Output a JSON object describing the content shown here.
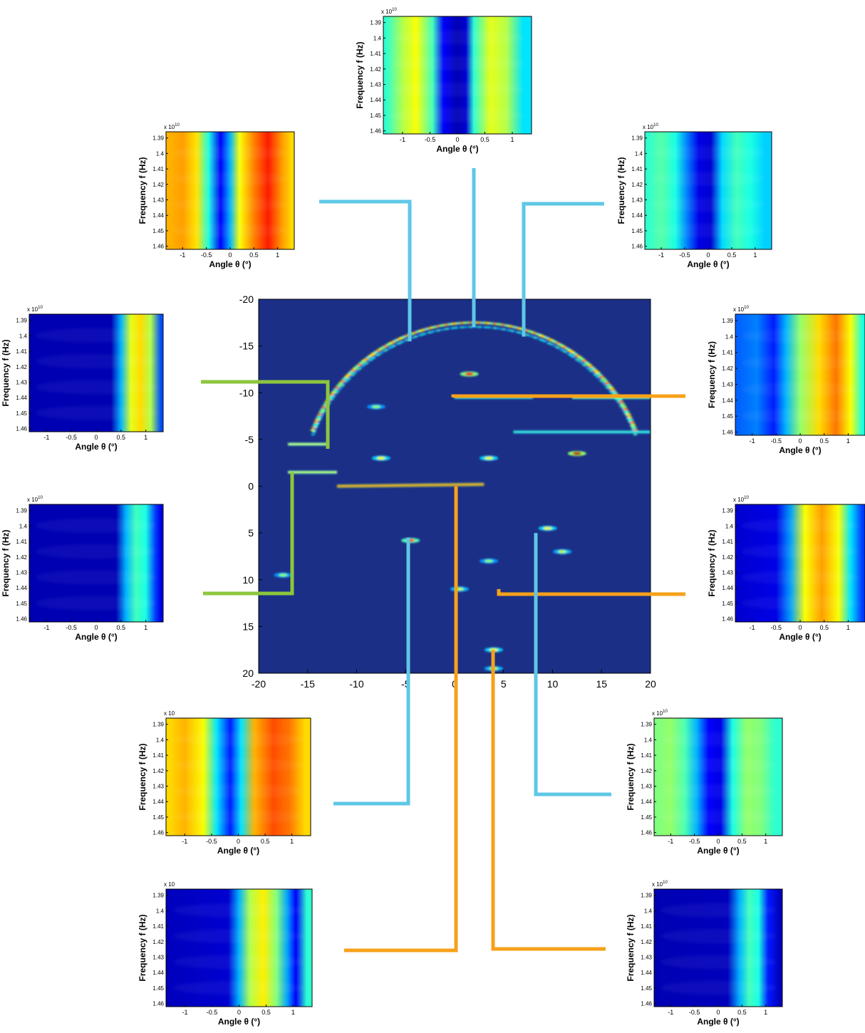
{
  "figure": {
    "connector_colors": {
      "blue": "#5ec7e6",
      "green": "#8cc63e",
      "orange": "#f7a11a"
    }
  },
  "chart_data": [
    {
      "id": "main-image",
      "type": "heatmap",
      "title": "",
      "xlabel": "",
      "ylabel": "",
      "xlim": [
        -20,
        20
      ],
      "ylim": [
        -20,
        20
      ],
      "y_direction": "down",
      "xticks": [
        "-20",
        "-15",
        "-10",
        "-5",
        "0",
        "5",
        "10",
        "15",
        "20"
      ],
      "yticks": [
        "-20",
        "-15",
        "-10",
        "-5",
        "0",
        "5",
        "10",
        "15",
        "20"
      ],
      "colormap": "jet",
      "background_color": "#1c2f86",
      "features": [
        {
          "kind": "arc",
          "center": [
            2,
            0
          ],
          "radius": 17.5,
          "from_angle_deg": 200,
          "to_angle_deg": 340,
          "intensity": 0.75
        },
        {
          "kind": "segment",
          "from": [
            -12,
            0
          ],
          "to": [
            3,
            -0.2
          ],
          "intensity": 0.8
        },
        {
          "kind": "segment",
          "from": [
            -17,
            -4.5
          ],
          "to": [
            -13,
            -4.5
          ],
          "intensity": 0.6
        },
        {
          "kind": "segment",
          "from": [
            -17,
            -1.5
          ],
          "to": [
            -12,
            -1.5
          ],
          "intensity": 0.6
        },
        {
          "kind": "segment",
          "from": [
            0,
            -9.5
          ],
          "to": [
            8,
            -9.5
          ],
          "intensity": 0.45
        },
        {
          "kind": "segment",
          "from": [
            12,
            -9.5
          ],
          "to": [
            20,
            -9.5
          ],
          "intensity": 0.55
        },
        {
          "kind": "segment",
          "from": [
            6,
            -5.8
          ],
          "to": [
            20,
            -5.8
          ],
          "intensity": 0.45
        },
        {
          "kind": "blob",
          "at": [
            12.5,
            -3.5
          ],
          "intensity": 0.95
        },
        {
          "kind": "blob",
          "at": [
            -4.5,
            5.8
          ],
          "intensity": 0.8
        },
        {
          "kind": "blob",
          "at": [
            1.5,
            -12
          ],
          "intensity": 0.9
        },
        {
          "kind": "blob",
          "at": [
            -7.5,
            -3
          ],
          "intensity": 0.6
        },
        {
          "kind": "blob",
          "at": [
            3.5,
            -3
          ],
          "intensity": 0.6
        },
        {
          "kind": "blob",
          "at": [
            9.5,
            4.5
          ],
          "intensity": 0.6
        },
        {
          "kind": "blob",
          "at": [
            11,
            7
          ],
          "intensity": 0.55
        },
        {
          "kind": "blob",
          "at": [
            4,
            17.5
          ],
          "intensity": 0.6
        },
        {
          "kind": "blob",
          "at": [
            4,
            19.5
          ],
          "intensity": 0.55
        },
        {
          "kind": "blob",
          "at": [
            0.5,
            11
          ],
          "intensity": 0.55
        },
        {
          "kind": "blob",
          "at": [
            3.5,
            8
          ],
          "intensity": 0.5
        },
        {
          "kind": "blob",
          "at": [
            -17.5,
            9.5
          ],
          "intensity": 0.5
        },
        {
          "kind": "blob",
          "at": [
            -8,
            -8.5
          ],
          "intensity": 0.5
        }
      ]
    },
    {
      "id": "panel-top",
      "type": "heatmap",
      "xlabel": "Angle θ (°)",
      "ylabel": "Frequency f (Hz)",
      "exponent_label": "x 10",
      "exponent_power": "10",
      "xlim": [
        -1.35,
        1.35
      ],
      "ylim": [
        1.386,
        1.462
      ],
      "xticks": [
        "-1",
        "-0.5",
        "0",
        "0.5",
        "1"
      ],
      "yticks": [
        "1.39",
        "1.4",
        "1.41",
        "1.42",
        "1.43",
        "1.44",
        "1.45",
        "1.46"
      ],
      "colormap": "jet",
      "connector": "blue",
      "connects_to": [
        2,
        -17
      ],
      "columns": [
        {
          "x": -1.3,
          "value": 0.42
        },
        {
          "x": -1.0,
          "value": 0.55
        },
        {
          "x": -0.75,
          "value": 0.62
        },
        {
          "x": -0.45,
          "value": 0.44
        },
        {
          "x": -0.25,
          "value": 0.12
        },
        {
          "x": 0.0,
          "value": 0.05
        },
        {
          "x": 0.15,
          "value": 0.08
        },
        {
          "x": 0.3,
          "value": 0.42
        },
        {
          "x": 0.6,
          "value": 0.6
        },
        {
          "x": 0.9,
          "value": 0.55
        },
        {
          "x": 1.2,
          "value": 0.35
        }
      ]
    },
    {
      "id": "panel-upper-left",
      "type": "heatmap",
      "xlabel": "Angle θ (°)",
      "ylabel": "Frequency f (Hz)",
      "exponent_label": "x 10",
      "exponent_power": "10",
      "xlim": [
        -1.35,
        1.35
      ],
      "ylim": [
        1.386,
        1.462
      ],
      "xticks": [
        "-1",
        "-0.5",
        "0",
        "0.5",
        "1"
      ],
      "yticks": [
        "1.39",
        "1.4",
        "1.41",
        "1.42",
        "1.43",
        "1.44",
        "1.45",
        "1.46"
      ],
      "colormap": "jet",
      "connector": "blue",
      "connects_to": [
        -4.5,
        -15.5
      ],
      "columns": [
        {
          "x": -1.3,
          "value": 0.7
        },
        {
          "x": -1.0,
          "value": 0.72
        },
        {
          "x": -0.7,
          "value": 0.65
        },
        {
          "x": -0.45,
          "value": 0.4
        },
        {
          "x": -0.2,
          "value": 0.12
        },
        {
          "x": 0.0,
          "value": 0.3
        },
        {
          "x": 0.2,
          "value": 0.62
        },
        {
          "x": 0.5,
          "value": 0.75
        },
        {
          "x": 0.8,
          "value": 0.85
        },
        {
          "x": 1.1,
          "value": 0.72
        },
        {
          "x": 1.3,
          "value": 0.66
        }
      ]
    },
    {
      "id": "panel-upper-right",
      "type": "heatmap",
      "xlabel": "Angle θ (°)",
      "ylabel": "Frequency f (Hz)",
      "exponent_label": "x 10",
      "exponent_power": "10",
      "xlim": [
        -1.35,
        1.35
      ],
      "ylim": [
        1.386,
        1.462
      ],
      "xticks": [
        "-1",
        "-0.5",
        "0",
        "0.5",
        "1"
      ],
      "yticks": [
        "1.39",
        "1.4",
        "1.41",
        "1.42",
        "1.43",
        "1.44",
        "1.45",
        "1.46"
      ],
      "colormap": "jet",
      "connector": "blue",
      "connects_to": [
        7,
        -16
      ],
      "columns": [
        {
          "x": -1.3,
          "value": 0.42
        },
        {
          "x": -1.0,
          "value": 0.46
        },
        {
          "x": -0.7,
          "value": 0.4
        },
        {
          "x": -0.45,
          "value": 0.25
        },
        {
          "x": -0.2,
          "value": 0.1
        },
        {
          "x": 0.05,
          "value": 0.08
        },
        {
          "x": 0.3,
          "value": 0.34
        },
        {
          "x": 0.6,
          "value": 0.44
        },
        {
          "x": 0.9,
          "value": 0.4
        },
        {
          "x": 1.2,
          "value": 0.33
        }
      ]
    },
    {
      "id": "panel-left-1",
      "type": "heatmap",
      "xlabel": "Angle θ (°)",
      "ylabel": "Frequency f (Hz)",
      "exponent_label": "x 10",
      "exponent_power": "10",
      "xlim": [
        -1.35,
        1.35
      ],
      "ylim": [
        1.386,
        1.462
      ],
      "xticks": [
        "-1",
        "-0.5",
        "0",
        "0.5",
        "1"
      ],
      "yticks": [
        "1.39",
        "1.4",
        "1.41",
        "1.42",
        "1.43",
        "1.44",
        "1.45",
        "1.46"
      ],
      "colormap": "jet",
      "connector": "green",
      "connects_to": [
        -13,
        -4
      ],
      "columns": [
        {
          "x": -1.3,
          "value": 0.05
        },
        {
          "x": 0.3,
          "value": 0.05
        },
        {
          "x": 0.5,
          "value": 0.3
        },
        {
          "x": 0.7,
          "value": 0.6
        },
        {
          "x": 0.9,
          "value": 0.66
        },
        {
          "x": 1.1,
          "value": 0.55
        },
        {
          "x": 1.3,
          "value": 0.2
        }
      ]
    },
    {
      "id": "panel-left-2",
      "type": "heatmap",
      "xlabel": "Angle θ (°)",
      "ylabel": "Frequency f (Hz)",
      "exponent_label": "x 10",
      "exponent_power": "10",
      "xlim": [
        -1.35,
        1.35
      ],
      "ylim": [
        1.386,
        1.462
      ],
      "xticks": [
        "-1",
        "-0.5",
        "0",
        "0.5",
        "1"
      ],
      "yticks": [
        "1.39",
        "1.4",
        "1.41",
        "1.42",
        "1.43",
        "1.44",
        "1.45",
        "1.46"
      ],
      "colormap": "jet",
      "connector": "green",
      "connects_to": [
        -17,
        -1.5
      ],
      "columns": [
        {
          "x": -1.3,
          "value": 0.05
        },
        {
          "x": 0.4,
          "value": 0.05
        },
        {
          "x": 0.6,
          "value": 0.3
        },
        {
          "x": 0.8,
          "value": 0.44
        },
        {
          "x": 1.0,
          "value": 0.4
        },
        {
          "x": 1.2,
          "value": 0.18
        },
        {
          "x": 1.3,
          "value": 0.1
        }
      ]
    },
    {
      "id": "panel-right-1",
      "type": "heatmap",
      "xlabel": "Angle θ (°)",
      "ylabel": "Frequency f (Hz)",
      "exponent_label": "x 10",
      "exponent_power": "10",
      "xlim": [
        -1.35,
        1.35
      ],
      "ylim": [
        1.386,
        1.462
      ],
      "xticks": [
        "-1",
        "-0.5",
        "0",
        "0.5",
        "1"
      ],
      "yticks": [
        "1.39",
        "1.4",
        "1.41",
        "1.42",
        "1.43",
        "1.44",
        "1.45",
        "1.46"
      ],
      "colormap": "jet",
      "connector": "orange",
      "connects_to": [
        -0.5,
        -9.5
      ],
      "columns": [
        {
          "x": -1.3,
          "value": 0.22
        },
        {
          "x": -0.9,
          "value": 0.25
        },
        {
          "x": -0.55,
          "value": 0.15
        },
        {
          "x": -0.3,
          "value": 0.3
        },
        {
          "x": 0.0,
          "value": 0.52
        },
        {
          "x": 0.4,
          "value": 0.66
        },
        {
          "x": 0.75,
          "value": 0.76
        },
        {
          "x": 1.05,
          "value": 0.62
        },
        {
          "x": 1.3,
          "value": 0.4
        }
      ]
    },
    {
      "id": "panel-right-2",
      "type": "heatmap",
      "xlabel": "Angle θ (°)",
      "ylabel": "Frequency f (Hz)",
      "exponent_label": "x 10",
      "exponent_power": "10",
      "xlim": [
        -1.35,
        1.35
      ],
      "ylim": [
        1.386,
        1.462
      ],
      "xticks": [
        "-1",
        "-0.5",
        "0",
        "0.5",
        "1"
      ],
      "yticks": [
        "1.39",
        "1.4",
        "1.41",
        "1.42",
        "1.43",
        "1.44",
        "1.45",
        "1.46"
      ],
      "colormap": "jet",
      "connector": "orange",
      "connects_to": [
        4.5,
        11
      ],
      "columns": [
        {
          "x": -1.3,
          "value": 0.08
        },
        {
          "x": -0.5,
          "value": 0.1
        },
        {
          "x": -0.2,
          "value": 0.28
        },
        {
          "x": 0.1,
          "value": 0.62
        },
        {
          "x": 0.45,
          "value": 0.72
        },
        {
          "x": 0.8,
          "value": 0.62
        },
        {
          "x": 1.05,
          "value": 0.35
        },
        {
          "x": 1.3,
          "value": 0.18
        }
      ]
    },
    {
      "id": "panel-lower-left",
      "type": "heatmap",
      "xlabel": "Angle θ (°)",
      "ylabel": "Frequency f (Hz)",
      "exponent_label": "x 10",
      "exponent_power": "",
      "xlim": [
        -1.35,
        1.35
      ],
      "ylim": [
        1.386,
        1.462
      ],
      "xticks": [
        "-1",
        "-0.5",
        "0",
        "0.5",
        "1"
      ],
      "yticks": [
        "1.39",
        "1.4",
        "1.41",
        "1.42",
        "1.43",
        "1.44",
        "1.45",
        "1.46"
      ],
      "colormap": "jet",
      "connector": "blue",
      "connects_to": [
        -5,
        5.5
      ],
      "columns": [
        {
          "x": -1.3,
          "value": 0.66
        },
        {
          "x": -1.0,
          "value": 0.7
        },
        {
          "x": -0.65,
          "value": 0.62
        },
        {
          "x": -0.4,
          "value": 0.35
        },
        {
          "x": -0.15,
          "value": 0.15
        },
        {
          "x": 0.05,
          "value": 0.35
        },
        {
          "x": 0.3,
          "value": 0.7
        },
        {
          "x": 0.65,
          "value": 0.8
        },
        {
          "x": 0.95,
          "value": 0.76
        },
        {
          "x": 1.25,
          "value": 0.66
        }
      ]
    },
    {
      "id": "panel-lower-right",
      "type": "heatmap",
      "xlabel": "Angle θ (°)",
      "ylabel": "Frequency f (Hz)",
      "exponent_label": "x 10",
      "exponent_power": "10",
      "xlim": [
        -1.35,
        1.35
      ],
      "ylim": [
        1.386,
        1.462
      ],
      "xticks": [
        "-1",
        "-0.5",
        "0",
        "0.5",
        "1"
      ],
      "yticks": [
        "1.39",
        "1.4",
        "1.41",
        "1.42",
        "1.43",
        "1.44",
        "1.45",
        "1.46"
      ],
      "colormap": "jet",
      "connector": "blue",
      "connects_to": [
        8.5,
        5
      ],
      "columns": [
        {
          "x": -1.3,
          "value": 0.5
        },
        {
          "x": -1.0,
          "value": 0.52
        },
        {
          "x": -0.7,
          "value": 0.45
        },
        {
          "x": -0.45,
          "value": 0.3
        },
        {
          "x": -0.2,
          "value": 0.12
        },
        {
          "x": 0.05,
          "value": 0.1
        },
        {
          "x": 0.3,
          "value": 0.4
        },
        {
          "x": 0.6,
          "value": 0.52
        },
        {
          "x": 0.9,
          "value": 0.5
        },
        {
          "x": 1.2,
          "value": 0.42
        }
      ]
    },
    {
      "id": "panel-bottom-left",
      "type": "heatmap",
      "xlabel": "Angle θ (°)",
      "ylabel": "Frequency f (Hz)",
      "exponent_label": "x 10",
      "exponent_power": "",
      "xlim": [
        -1.35,
        1.35
      ],
      "ylim": [
        1.386,
        1.462
      ],
      "xticks": [
        "-1",
        "-0.5",
        "0",
        "0.5",
        "1"
      ],
      "yticks": [
        "1.39",
        "1.4",
        "1.41",
        "1.42",
        "1.43",
        "1.44",
        "1.45",
        "1.46"
      ],
      "colormap": "jet",
      "connector": "orange",
      "connects_to": [
        0,
        0
      ],
      "columns": [
        {
          "x": -1.3,
          "value": 0.06
        },
        {
          "x": -0.2,
          "value": 0.08
        },
        {
          "x": 0.0,
          "value": 0.3
        },
        {
          "x": 0.2,
          "value": 0.55
        },
        {
          "x": 0.45,
          "value": 0.64
        },
        {
          "x": 0.7,
          "value": 0.5
        },
        {
          "x": 0.9,
          "value": 0.28
        },
        {
          "x": 1.05,
          "value": 0.12
        },
        {
          "x": 1.25,
          "value": 0.42
        }
      ]
    },
    {
      "id": "panel-bottom-right",
      "type": "heatmap",
      "xlabel": "Angle θ (°)",
      "ylabel": "Frequency f (Hz)",
      "exponent_label": "x 10",
      "exponent_power": "10",
      "xlim": [
        -1.35,
        1.35
      ],
      "ylim": [
        1.386,
        1.462
      ],
      "xticks": [
        "-1",
        "-0.5",
        "0",
        "0.5",
        "1"
      ],
      "yticks": [
        "1.39",
        "1.4",
        "1.41",
        "1.42",
        "1.43",
        "1.44",
        "1.45",
        "1.46"
      ],
      "colormap": "jet",
      "connector": "orange",
      "connects_to": [
        4,
        17.5
      ],
      "columns": [
        {
          "x": -1.3,
          "value": 0.05
        },
        {
          "x": 0.2,
          "value": 0.06
        },
        {
          "x": 0.45,
          "value": 0.3
        },
        {
          "x": 0.65,
          "value": 0.44
        },
        {
          "x": 0.85,
          "value": 0.4
        },
        {
          "x": 1.05,
          "value": 0.15
        },
        {
          "x": 1.3,
          "value": 0.06
        }
      ]
    }
  ]
}
